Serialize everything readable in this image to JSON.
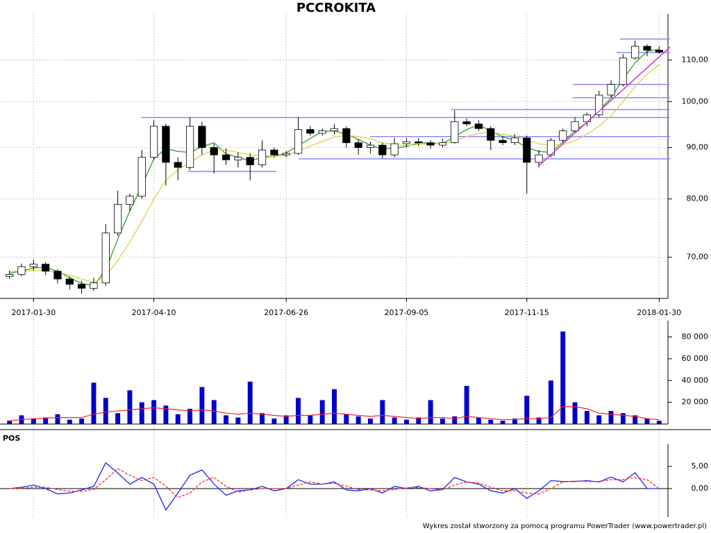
{
  "chart_data": [
    {
      "type": "candlestick",
      "title": "PCCROKITA",
      "log_scale": true,
      "grid": true,
      "categories": [
        null,
        null,
        "2017-01-30",
        null,
        null,
        null,
        null,
        null,
        null,
        null,
        null,
        null,
        "2017-04-10",
        null,
        null,
        null,
        null,
        null,
        null,
        null,
        null,
        null,
        null,
        "2017-06-26",
        null,
        null,
        null,
        null,
        null,
        null,
        null,
        null,
        null,
        "2017-09-05",
        null,
        null,
        null,
        null,
        null,
        null,
        null,
        null,
        null,
        "2017-11-15",
        null,
        null,
        null,
        null,
        null,
        null,
        null,
        null,
        null,
        null,
        "2018-01-30"
      ],
      "open": [
        67.0,
        67.3,
        68.5,
        68.9,
        67.8,
        66.6,
        65.8,
        65.2,
        66.0,
        74.0,
        79.0,
        80.5,
        88.0,
        94.5,
        87.0,
        86.0,
        94.5,
        90.0,
        88.5,
        87.5,
        88.0,
        86.5,
        89.5,
        88.5,
        88.8,
        93.8,
        93.0,
        93.5,
        94.0,
        91.0,
        90.0,
        90.5,
        88.5,
        90.8,
        91.2,
        91.0,
        90.5,
        91.0,
        95.5,
        95.0,
        94.0,
        91.5,
        91.0,
        92.0,
        87.0,
        88.5,
        91.5,
        93.5,
        95.5,
        97.0,
        101.5,
        104.0,
        110.5,
        113.5,
        112.5
      ],
      "high": [
        67.9,
        69.0,
        69.6,
        69.2,
        68.1,
        67.0,
        66.3,
        66.8,
        75.5,
        81.5,
        81.0,
        89.5,
        95.8,
        95.0,
        88.0,
        96.5,
        95.5,
        90.8,
        89.8,
        89.0,
        88.8,
        91.5,
        90.0,
        89.3,
        96.5,
        94.5,
        94.0,
        95.0,
        94.5,
        91.8,
        91.2,
        91.0,
        92.0,
        92.0,
        92.0,
        91.5,
        91.8,
        98.0,
        96.2,
        95.8,
        94.5,
        92.5,
        92.8,
        92.5,
        89.5,
        92.0,
        94.0,
        96.5,
        97.5,
        102.5,
        105.0,
        111.5,
        115.0,
        114.0,
        113.5
      ],
      "low": [
        66.6,
        67.0,
        67.9,
        67.2,
        65.9,
        65.0,
        64.4,
        64.8,
        65.6,
        73.5,
        77.8,
        80.0,
        87.5,
        82.5,
        83.5,
        85.5,
        88.5,
        84.8,
        86.5,
        86.0,
        83.5,
        86.0,
        88.0,
        88.0,
        88.5,
        92.5,
        92.5,
        92.8,
        90.0,
        88.5,
        88.8,
        87.8,
        88.0,
        90.2,
        90.3,
        89.8,
        90.0,
        90.8,
        94.5,
        93.5,
        89.5,
        90.5,
        90.5,
        81.0,
        86.0,
        88.0,
        91.0,
        93.0,
        94.5,
        96.5,
        101.0,
        103.5,
        110.0,
        111.0,
        111.5
      ],
      "close": [
        67.3,
        68.5,
        68.9,
        67.8,
        66.6,
        65.8,
        65.2,
        66.0,
        74.0,
        79.0,
        80.5,
        88.0,
        94.5,
        87.0,
        86.0,
        94.5,
        90.0,
        88.5,
        87.5,
        88.0,
        86.5,
        89.5,
        88.5,
        88.8,
        93.8,
        93.0,
        93.5,
        94.0,
        91.0,
        90.0,
        90.5,
        88.5,
        90.8,
        91.2,
        91.0,
        90.5,
        91.0,
        95.5,
        95.0,
        94.0,
        91.5,
        91.0,
        92.0,
        87.0,
        88.5,
        91.5,
        93.5,
        95.5,
        97.0,
        101.5,
        104.0,
        110.5,
        113.5,
        112.5,
        112.0
      ],
      "up_color": "#ffffff",
      "down_color": "#000000",
      "series": [
        {
          "color": "#2e9e2e",
          "values": [
            67.5,
            67.8,
            68.3,
            68.4,
            67.8,
            66.8,
            65.9,
            65.6,
            68.0,
            73.0,
            77.8,
            82.5,
            87.7,
            89.8,
            89.2,
            89.0,
            90.2,
            91.0,
            88.7,
            88.0,
            87.3,
            88.0,
            88.2,
            88.9,
            90.4,
            91.9,
            93.4,
            93.5,
            92.8,
            91.7,
            90.5,
            89.7,
            89.9,
            90.2,
            91.0,
            90.9,
            90.8,
            92.3,
            93.8,
            94.8,
            93.5,
            92.2,
            91.5,
            90.0,
            89.2,
            89.0,
            91.2,
            93.5,
            95.3,
            98.0,
            100.8,
            105.3,
            109.3,
            112.2,
            112.7
          ]
        },
        {
          "color": "#e0d040",
          "values": [
            67.8,
            67.8,
            67.9,
            67.9,
            67.6,
            67.2,
            66.6,
            66.1,
            67.0,
            69.5,
            72.5,
            76.0,
            80.0,
            83.5,
            85.5,
            87.0,
            88.5,
            89.5,
            89.5,
            89.0,
            88.5,
            88.3,
            88.2,
            88.4,
            89.3,
            90.3,
            91.3,
            92.2,
            92.5,
            92.3,
            91.8,
            91.0,
            90.6,
            90.4,
            90.6,
            90.8,
            90.8,
            91.4,
            92.3,
            93.0,
            93.2,
            92.8,
            92.4,
            91.6,
            90.8,
            90.5,
            90.6,
            91.4,
            92.8,
            94.5,
            96.8,
            100.0,
            103.5,
            106.5,
            108.8
          ]
        }
      ],
      "levels": [
        96.4,
        87.7,
        85.2,
        92.3,
        98.2,
        100.9,
        104.0,
        111.9,
        115.4
      ],
      "levels_color": "#8888ff",
      "trendline": [
        86.2,
        113.3
      ],
      "trendline_color": "#cc33cc",
      "ylim": [
        63.7,
        120.7
      ],
      "yticks": [
        {
          "value": 70,
          "label": "70,00"
        },
        {
          "value": 80,
          "label": "80,00"
        },
        {
          "value": 90,
          "label": "90,00"
        },
        {
          "value": 100,
          "label": "100,00"
        },
        {
          "value": 110,
          "label": "110,00"
        }
      ]
    },
    {
      "type": "bar",
      "grid": false,
      "series": [
        {
          "type": "bar",
          "color": "#0000cc",
          "values": [
            3000,
            8000,
            5000,
            6000,
            9000,
            4000,
            5000,
            38000,
            24000,
            10000,
            31000,
            20000,
            22000,
            17000,
            9000,
            14000,
            34000,
            22000,
            8000,
            6000,
            39000,
            10000,
            5000,
            8000,
            24000,
            8000,
            22000,
            32000,
            9000,
            7000,
            5000,
            22000,
            6000,
            4000,
            6000,
            22000,
            5000,
            7000,
            35000,
            6000,
            4000,
            3000,
            5000,
            26000,
            6000,
            40000,
            85000,
            20000,
            12000,
            8000,
            12000,
            10000,
            8000,
            5000,
            3000
          ]
        },
        {
          "type": "line",
          "color": "#ff2020",
          "values": [
            3000,
            4000,
            5000,
            5500,
            6000,
            6000,
            6000,
            9000,
            11000,
            12000,
            13000,
            14000,
            15000,
            14000,
            13000,
            12000,
            13000,
            12000,
            10000,
            9000,
            10000,
            9000,
            8000,
            7000,
            8000,
            8000,
            9000,
            10000,
            9000,
            8000,
            7000,
            8000,
            7000,
            6000,
            5000,
            6000,
            6000,
            5000,
            7000,
            6000,
            5000,
            4000,
            4000,
            5000,
            5000,
            6000,
            16000,
            16000,
            14000,
            10000,
            9000,
            8000,
            7000,
            5000,
            4000
          ]
        }
      ],
      "ylim": [
        0,
        95000
      ],
      "yticks": [
        {
          "value": 20000,
          "label": "20 000"
        },
        {
          "value": 40000,
          "label": "40 000"
        },
        {
          "value": 60000,
          "label": "60 000"
        },
        {
          "value": 80000,
          "label": "80 000"
        }
      ]
    },
    {
      "type": "line",
      "title": "POS",
      "grid": false,
      "zero_line": true,
      "series": [
        {
          "color": "#2020ff",
          "values": [
            0,
            0.3,
            0.8,
            0,
            -1.2,
            -1,
            -0.3,
            0.5,
            5.8,
            3.5,
            1,
            2.5,
            1,
            -4.8,
            -1,
            3,
            4.2,
            1,
            -1.5,
            -0.5,
            -0.3,
            0.5,
            -0.5,
            0,
            2,
            1,
            1,
            1.5,
            -0.3,
            -0.5,
            0,
            -1,
            0.5,
            0,
            0.5,
            -0.5,
            -0.2,
            2.5,
            1.5,
            1,
            -0.5,
            -1,
            0,
            -2.2,
            -0.5,
            1.8,
            1.6,
            1.6,
            1.8,
            1.5,
            2.6,
            1.5,
            3.6,
            0,
            0
          ]
        },
        {
          "color": "#ff3030",
          "dash": true,
          "values": [
            0,
            0.1,
            0.3,
            0.3,
            -0.2,
            -0.6,
            -0.6,
            -0.2,
            2,
            4.5,
            3,
            1.8,
            2.5,
            0.5,
            -2,
            -1,
            1.5,
            2.5,
            0.5,
            -0.8,
            -0.3,
            0,
            0,
            0,
            0.8,
            1.5,
            1,
            1.2,
            0.5,
            -0.2,
            -0.3,
            -0.5,
            -0.2,
            0.2,
            0.2,
            0,
            -0.3,
            0.8,
            1.5,
            1.2,
            0.3,
            -0.5,
            -0.5,
            -1,
            -1.2,
            0,
            1.5,
            1.7,
            1.6,
            1.6,
            2,
            2,
            2.5,
            2,
            0
          ]
        }
      ],
      "ylim": [
        -6.4,
        10
      ],
      "yticks": [
        {
          "value": 0,
          "label": "0,00"
        },
        {
          "value": 5,
          "label": "5,00"
        }
      ]
    }
  ],
  "footer": "Wykres został stworzony za pomocą programu PowerTrader (www.powertrader.pl)"
}
